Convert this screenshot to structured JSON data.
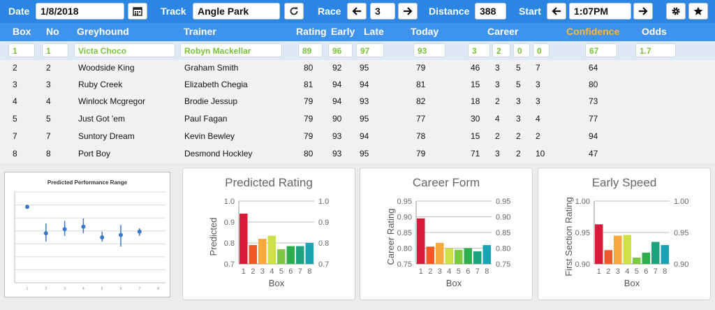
{
  "toolbar": {
    "date_label": "Date",
    "date_value": "1/8/2018",
    "track_label": "Track",
    "track_value": "Angle Park",
    "race_label": "Race",
    "race_value": "3",
    "distance_label": "Distance",
    "distance_value": "388",
    "start_label": "Start",
    "start_value": "1:07PM",
    "icons": [
      "calendar-icon",
      "refresh-icon",
      "arrow-left-icon",
      "arrow-right-icon",
      "gear-icon",
      "star-icon"
    ]
  },
  "table": {
    "headers": {
      "box": "Box",
      "no": "No",
      "greyhound": "Greyhound",
      "trainer": "Trainer",
      "rating": "Rating",
      "early": "Early",
      "late": "Late",
      "today": "Today",
      "career": "Career",
      "confidence": "Confidence",
      "odds": "Odds"
    },
    "selected": {
      "box": "1",
      "no": "1",
      "greyhound": "Victa Choco",
      "trainer": "Robyn Mackellar",
      "rating": "89",
      "early": "96",
      "late": "97",
      "today": "93",
      "c1": "3",
      "c2": "2",
      "c3": "0",
      "c4": "0",
      "confidence": "67",
      "odds": "1.7"
    },
    "rows": [
      {
        "box": "2",
        "no": "2",
        "greyhound": "Woodside King",
        "trainer": "Graham Smith",
        "rating": "80",
        "early": "92",
        "late": "95",
        "today": "79",
        "c1": "46",
        "c2": "3",
        "c3": "5",
        "c4": "7",
        "confidence": "64"
      },
      {
        "box": "3",
        "no": "3",
        "greyhound": "Ruby Creek",
        "trainer": "Elizabeth Chegia",
        "rating": "81",
        "early": "94",
        "late": "94",
        "today": "81",
        "c1": "15",
        "c2": "3",
        "c3": "5",
        "c4": "3",
        "confidence": "80"
      },
      {
        "box": "4",
        "no": "4",
        "greyhound": "Winlock Mcgregor",
        "trainer": "Brodie Jessup",
        "rating": "79",
        "early": "94",
        "late": "93",
        "today": "82",
        "c1": "18",
        "c2": "2",
        "c3": "3",
        "c4": "3",
        "confidence": "73"
      },
      {
        "box": "5",
        "no": "5",
        "greyhound": "Just Got 'em",
        "trainer": "Paul Fagan",
        "rating": "79",
        "early": "90",
        "late": "95",
        "today": "77",
        "c1": "30",
        "c2": "4",
        "c3": "3",
        "c4": "4",
        "confidence": "77"
      },
      {
        "box": "7",
        "no": "7",
        "greyhound": "Suntory Dream",
        "trainer": "Kevin Bewley",
        "rating": "79",
        "early": "93",
        "late": "94",
        "today": "78",
        "c1": "15",
        "c2": "2",
        "c3": "2",
        "c4": "2",
        "confidence": "94"
      },
      {
        "box": "8",
        "no": "8",
        "greyhound": "Port Boy",
        "trainer": "Desmond Hockley",
        "rating": "80",
        "early": "93",
        "late": "95",
        "today": "79",
        "c1": "71",
        "c2": "3",
        "c3": "2",
        "c4": "10",
        "confidence": "47"
      }
    ]
  },
  "chart_data": [
    {
      "type": "scatter",
      "title": "Predicted Performance Range",
      "categories": [
        "1",
        "2",
        "3",
        "4",
        "5",
        "6",
        "7",
        "8"
      ],
      "points": [
        {
          "x": 1,
          "y": 0.92,
          "low": 0.92,
          "high": 0.92
        },
        {
          "x": 2,
          "y": 0.6,
          "low": 0.5,
          "high": 0.72
        },
        {
          "x": 3,
          "y": 0.65,
          "low": 0.57,
          "high": 0.75
        },
        {
          "x": 4,
          "y": 0.68,
          "low": 0.6,
          "high": 0.78
        },
        {
          "x": 5,
          "y": 0.55,
          "low": 0.5,
          "high": 0.62
        },
        {
          "x": 6,
          "y": 0.58,
          "low": 0.44,
          "high": 0.7
        },
        {
          "x": 7,
          "y": 0.62,
          "low": 0.57,
          "high": 0.66
        }
      ],
      "ylim": [
        0,
        1.1
      ],
      "grid": true
    },
    {
      "type": "bar",
      "title": "Predicted Rating",
      "xlabel": "Box",
      "ylabel": "Predicted",
      "categories": [
        "1",
        "2",
        "3",
        "4",
        "5",
        "6",
        "7",
        "8"
      ],
      "values": [
        0.94,
        0.79,
        0.82,
        0.835,
        0.77,
        0.785,
        0.785,
        0.8
      ],
      "ylim": [
        0.7,
        1.0
      ],
      "yticks": [
        "0.7",
        "0.8",
        "0.9",
        "1.0"
      ]
    },
    {
      "type": "bar",
      "title": "Career Form",
      "xlabel": "Box",
      "ylabel": "Career Rating",
      "categories": [
        "1",
        "2",
        "3",
        "4",
        "5",
        "6",
        "7",
        "8"
      ],
      "values": [
        0.895,
        0.805,
        0.817,
        0.8,
        0.795,
        0.8,
        0.79,
        0.81
      ],
      "ylim": [
        0.75,
        0.95
      ],
      "yticks": [
        "0.75",
        "0.80",
        "0.85",
        "0.90",
        "0.95"
      ]
    },
    {
      "type": "bar",
      "title": "Early Speed",
      "xlabel": "Box",
      "ylabel": "First Section Rating",
      "categories": [
        "1",
        "2",
        "3",
        "4",
        "5",
        "6",
        "7",
        "8"
      ],
      "values": [
        0.963,
        0.922,
        0.945,
        0.946,
        0.91,
        0.918,
        0.935,
        0.93
      ],
      "ylim": [
        0.9,
        1.0
      ],
      "yticks": [
        "0.90",
        "0.95",
        "1.00"
      ]
    }
  ],
  "colors": {
    "topbar": "#2a86e2",
    "header": "#3f93ec",
    "selected_text": "#7bc23a",
    "confidence_header": "#ffb830",
    "bar_colors": [
      "#d81b3a",
      "#f05a28",
      "#f7a83a",
      "#cde04a",
      "#7dc843",
      "#2fae4e",
      "#1ea47c",
      "#1aa3b3"
    ]
  }
}
